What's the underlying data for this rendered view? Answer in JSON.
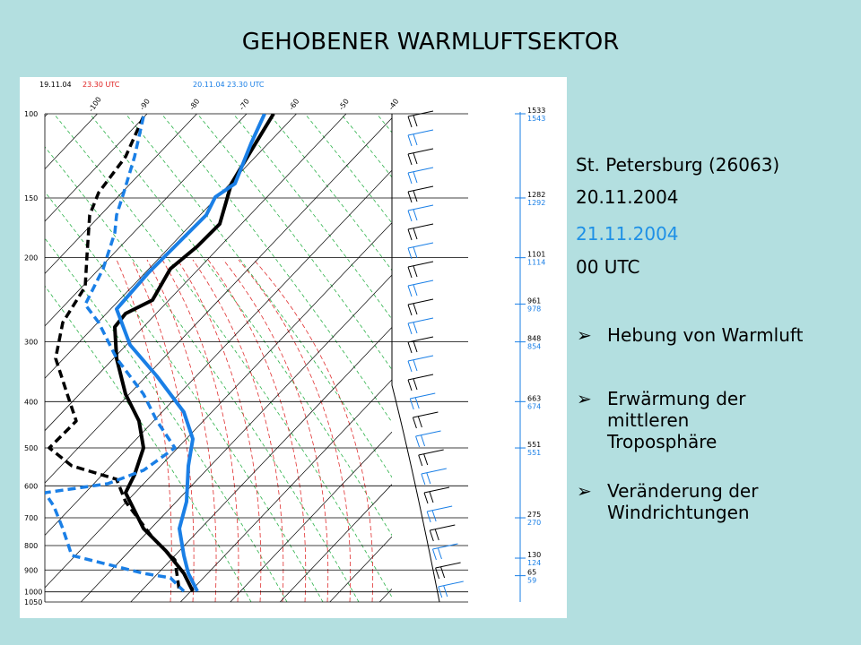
{
  "title": "GEHOBENER WARMLUFTSEKTOR",
  "figure": {
    "run_1": {
      "date": "19.11.04",
      "time": "23.30 UTC"
    },
    "run_2": "20.11.04  23.30 UTC",
    "pressure_labels": [
      100,
      150,
      200,
      300,
      400,
      500,
      600,
      700,
      800,
      900,
      1000,
      1050
    ],
    "isotherm_labels": [
      -100,
      -90,
      -80,
      -70,
      -60,
      -50,
      -40
    ],
    "heights_1": [
      "1533",
      "1282",
      "1101",
      "961",
      "848",
      "663",
      "551",
      "275",
      "130",
      "65"
    ],
    "heights_2": [
      "1543",
      "1292",
      "1114",
      "978",
      "854",
      "674",
      "551",
      "270",
      "124",
      "59"
    ]
  },
  "info": {
    "station": "St. Petersburg (26063)",
    "date_1": "20.11.2004",
    "date_2": "21.11.2004",
    "time": "00 UTC"
  },
  "bullets": [
    "Hebung von Warmluft",
    "Erwärmung der mittleren Troposphäre",
    "Veränderung der Windrichtungen"
  ]
}
